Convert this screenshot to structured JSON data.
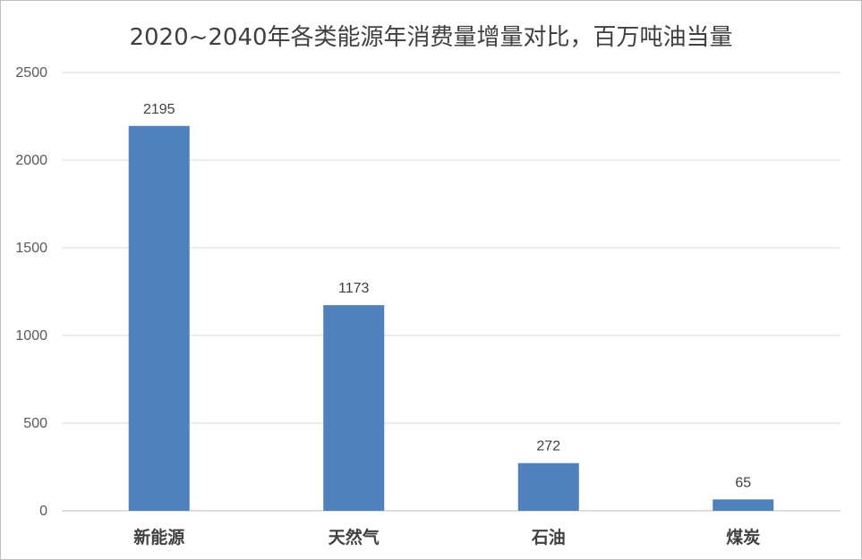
{
  "chart_data": {
    "type": "bar",
    "title": "2020~2040年各类能源年消费量增量对比，百万吨油当量",
    "categories": [
      "新能源",
      "天然气",
      "石油",
      "煤炭"
    ],
    "values": [
      2195,
      1173,
      272,
      65
    ],
    "data_labels": [
      "2195",
      "1173",
      "272",
      "65"
    ],
    "ylim": [
      0,
      2500
    ],
    "yticks": [
      0,
      500,
      1000,
      1500,
      2000,
      2500
    ],
    "xlabel": "",
    "ylabel": "",
    "grid": true,
    "legend": "none",
    "colors": {
      "bar": "#4f81bd",
      "grid": "#d9d9d9",
      "axis": "#bfbfbf"
    }
  }
}
